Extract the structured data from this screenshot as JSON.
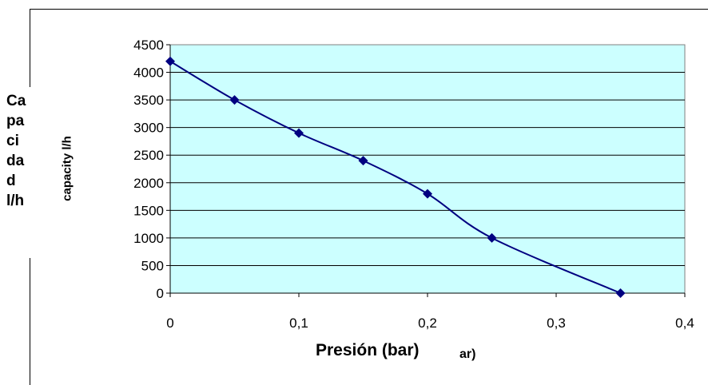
{
  "chart_data": {
    "type": "line",
    "xlabel": "Presión (bar)",
    "xlabel_overlap_fragment": "ar)",
    "ylabel_outer": "Ca\npa\nci\nda\nd\nl/h",
    "ylabel_inner": "capacity l/h",
    "xlim": [
      0,
      0.4
    ],
    "ylim": [
      0,
      4500
    ],
    "x_ticks": [
      "0",
      "0,1",
      "0,2",
      "0,3",
      "0,4"
    ],
    "y_ticks": [
      "0",
      "500",
      "1000",
      "1500",
      "2000",
      "2500",
      "3000",
      "3500",
      "4000",
      "4500"
    ],
    "grid": "horizontal",
    "plot_background": "#ccffff",
    "line_color": "#000080",
    "marker": "diamond",
    "series": [
      {
        "x": [
          0,
          0.05,
          0.1,
          0.15,
          0.2,
          0.25,
          0.35
        ],
        "y": [
          4200,
          3500,
          2900,
          2400,
          1800,
          1000,
          0
        ]
      }
    ]
  }
}
